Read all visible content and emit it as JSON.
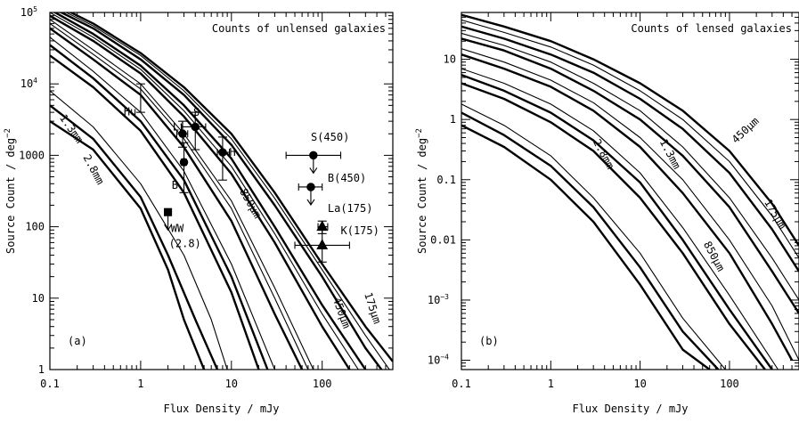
{
  "chart_data": [
    {
      "type": "line",
      "panel_label": "(a)",
      "title": "Counts of unlensed galaxies",
      "xlabel": "Flux Density / mJy",
      "ylabel": "Source Count / deg",
      "ylabel_exponent": "−2",
      "x_scale": "log",
      "y_scale": "log",
      "xlim": [
        0.1,
        600
      ],
      "ylim": [
        1,
        100000
      ],
      "x_ticks": [
        {
          "value": 0.1,
          "label": "0.1"
        },
        {
          "value": 1,
          "label": "1"
        },
        {
          "value": 10,
          "label": "10"
        },
        {
          "value": 100,
          "label": "100"
        }
      ],
      "y_ticks": [
        {
          "value": 1,
          "label": "1"
        },
        {
          "value": 10,
          "label": "10"
        },
        {
          "value": 100,
          "label": "100"
        },
        {
          "value": 1000,
          "label": "1000"
        },
        {
          "value": 10000,
          "label": "10",
          "exponent": "4"
        },
        {
          "value": 100000,
          "label": "10",
          "exponent": "5"
        }
      ],
      "curve_labels": [
        {
          "text": "2.8mm",
          "x": 0.28,
          "y": 600,
          "rotate": 62
        },
        {
          "text": "1.3mm",
          "x": 0.16,
          "y": 2200,
          "rotate": 55
        },
        {
          "text": "850μm",
          "x": 15,
          "y": 200,
          "rotate": 60
        },
        {
          "text": "450μm",
          "x": 150,
          "y": 6,
          "rotate": 70
        },
        {
          "text": "175μm",
          "x": 330,
          "y": 7,
          "rotate": 72
        }
      ],
      "series": [
        {
          "band": "2.8mm",
          "weight": "thick",
          "x": [
            0.1,
            0.3,
            1,
            2,
            3,
            5
          ],
          "y": [
            3000,
            1200,
            180,
            25,
            5,
            1
          ]
        },
        {
          "band": "2.8mm",
          "weight": "thick",
          "x": [
            0.1,
            0.3,
            1,
            2,
            4,
            7
          ],
          "y": [
            5000,
            1700,
            260,
            40,
            5,
            1
          ]
        },
        {
          "band": "2.8mm",
          "weight": "thin",
          "x": [
            0.1,
            0.3,
            1,
            3,
            6,
            9
          ],
          "y": [
            8000,
            2500,
            400,
            40,
            5,
            1
          ]
        },
        {
          "band": "1.3mm",
          "weight": "thick",
          "x": [
            0.1,
            0.3,
            1,
            3,
            10,
            20
          ],
          "y": [
            25000,
            9000,
            2200,
            300,
            12,
            1
          ]
        },
        {
          "band": "1.3mm",
          "weight": "thick",
          "x": [
            0.1,
            0.3,
            1,
            3,
            10,
            25
          ],
          "y": [
            35000,
            12000,
            3000,
            450,
            20,
            1
          ]
        },
        {
          "band": "1.3mm",
          "weight": "thin",
          "x": [
            0.1,
            0.3,
            1,
            3,
            10,
            30
          ],
          "y": [
            45000,
            15000,
            4000,
            600,
            30,
            1
          ]
        },
        {
          "band": "850μm",
          "weight": "thick",
          "x": [
            0.1,
            0.3,
            1,
            3,
            10,
            30,
            60
          ],
          "y": [
            60000,
            22000,
            7000,
            1300,
            120,
            6,
            1
          ]
        },
        {
          "band": "850μm",
          "weight": "thin",
          "x": [
            0.1,
            0.3,
            1,
            3,
            10,
            30,
            70
          ],
          "y": [
            70000,
            26000,
            8500,
            1700,
            180,
            10,
            1
          ]
        },
        {
          "band": "850μm",
          "weight": "thin",
          "x": [
            0.1,
            0.3,
            1,
            3,
            10,
            30,
            80
          ],
          "y": [
            80000,
            30000,
            10000,
            2000,
            230,
            14,
            1
          ]
        },
        {
          "band": "450μm",
          "weight": "thick",
          "x": [
            0.1,
            0.3,
            1,
            3,
            10,
            30,
            100,
            200
          ],
          "y": [
            90000,
            40000,
            14000,
            3500,
            550,
            60,
            4,
            1
          ]
        },
        {
          "band": "450μm",
          "weight": "thin",
          "x": [
            0.1,
            0.3,
            1,
            3,
            10,
            30,
            100,
            250
          ],
          "y": [
            100000,
            45000,
            16000,
            4200,
            700,
            80,
            6,
            1
          ]
        },
        {
          "band": "450μm",
          "weight": "thick",
          "x": [
            0.1,
            0.3,
            1,
            3,
            10,
            30,
            100,
            300
          ],
          "y": [
            110000,
            50000,
            18000,
            5000,
            900,
            100,
            8,
            1
          ]
        },
        {
          "band": "175μm",
          "weight": "thick",
          "x": [
            0.1,
            0.3,
            1,
            3,
            10,
            30,
            100,
            300,
            450
          ],
          "y": [
            120000,
            60000,
            22000,
            7000,
            1400,
            200,
            20,
            2,
            1
          ]
        },
        {
          "band": "175μm",
          "weight": "thin",
          "x": [
            0.1,
            0.3,
            1,
            3,
            10,
            30,
            100,
            300,
            550
          ],
          "y": [
            130000,
            65000,
            25000,
            8000,
            1700,
            250,
            25,
            3,
            1
          ]
        },
        {
          "band": "175μm",
          "weight": "thick",
          "x": [
            0.1,
            0.3,
            1,
            3,
            10,
            30,
            100,
            300,
            600
          ],
          "y": [
            140000,
            70000,
            27000,
            9000,
            2000,
            300,
            30,
            4,
            1.3
          ]
        }
      ],
      "data_points": [
        {
          "label": "Hu",
          "marker": "none",
          "x": 1.0,
          "y": 6300,
          "x_err": [
            1.0,
            1.0
          ],
          "y_err": [
            4000,
            10000
          ],
          "label_x": 0.65,
          "label_y": 4100
        },
        {
          "label": "Li",
          "marker": "circle",
          "x": 2.9,
          "y": 2000,
          "x_err": [
            2.5,
            3.3
          ],
          "y_err": [
            1300,
            3000
          ],
          "label_x": 2.25,
          "label_y": 2500
        },
        {
          "label": "S",
          "marker": "circle",
          "x": 4.0,
          "y": 2500,
          "x_err": [
            2.8,
            5.2
          ],
          "y_err": [
            1200,
            4000
          ],
          "label_x": 3.8,
          "label_y": 4000
        },
        {
          "label": "B",
          "marker": "circle",
          "x": 3.0,
          "y": 800,
          "x_err": [
            2.8,
            3.2
          ],
          "y_err": [
            300,
            1500
          ],
          "label_x": 2.2,
          "label_y": 380
        },
        {
          "label": "H",
          "marker": "circle",
          "x": 8.0,
          "y": 1100,
          "x_err": [
            7.0,
            9.5
          ],
          "y_err": [
            450,
            1800
          ],
          "label_x": 9.5,
          "label_y": 1100
        },
        {
          "label": "S(450)",
          "marker": "circle",
          "x": 80,
          "y": 1000,
          "x_err": [
            40,
            160
          ],
          "y_err": [
            1000,
            1000
          ],
          "upper_limit": true,
          "label_x": 75,
          "label_y": 1800
        },
        {
          "label": "B(450)",
          "marker": "circle",
          "x": 75,
          "y": 360,
          "x_err": [
            55,
            100
          ],
          "y_err": [
            360,
            360
          ],
          "upper_limit": true,
          "label_x": 115,
          "label_y": 480
        },
        {
          "label": "La(175)",
          "marker": "triangle",
          "x": 100,
          "y": 100,
          "x_err": [
            90,
            115
          ],
          "y_err": [
            80,
            120
          ],
          "label_x": 115,
          "label_y": 180
        },
        {
          "label": "K(175)",
          "marker": "triangle",
          "x": 100,
          "y": 55,
          "x_err": [
            50,
            200
          ],
          "y_err": [
            32,
            90
          ],
          "label_x": 160,
          "label_y": 88
        },
        {
          "label": "WW",
          "label2": "(2.8)",
          "marker": "square",
          "x": 2.0,
          "y": 160,
          "x_err": [
            2.0,
            2.0
          ],
          "y_err": [
            160,
            160
          ],
          "upper_limit": true,
          "label_x": 2.15,
          "label_y": 95,
          "label2_x": 2.05,
          "label2_y": 58
        }
      ]
    },
    {
      "type": "line",
      "panel_label": "(b)",
      "title": "Counts of lensed galaxies",
      "xlabel": "Flux Density / mJy",
      "ylabel": "Source Count / deg",
      "ylabel_exponent": "−2",
      "x_scale": "log",
      "y_scale": "log",
      "xlim": [
        0.1,
        600
      ],
      "ylim": [
        7e-05,
        60
      ],
      "x_ticks": [
        {
          "value": 0.1,
          "label": "0.1"
        },
        {
          "value": 1,
          "label": "1"
        },
        {
          "value": 10,
          "label": "10"
        },
        {
          "value": 100,
          "label": "100"
        }
      ],
      "y_ticks": [
        {
          "value": 0.0001,
          "label": "10",
          "exponent": "−4"
        },
        {
          "value": 0.001,
          "label": "10",
          "exponent": "−3"
        },
        {
          "value": 0.01,
          "label": "0.01"
        },
        {
          "value": 0.1,
          "label": "0.1"
        },
        {
          "value": 1,
          "label": "1"
        },
        {
          "value": 10,
          "label": "10"
        }
      ],
      "curve_labels": [
        {
          "text": "2.8mm",
          "x": 3.6,
          "y": 0.25,
          "rotate": 62
        },
        {
          "text": "1.3mm",
          "x": 20,
          "y": 0.25,
          "rotate": 62
        },
        {
          "text": "850μm",
          "x": 62,
          "y": 0.005,
          "rotate": 62
        },
        {
          "text": "450μm",
          "x": 160,
          "y": 0.6,
          "rotate": -43
        },
        {
          "text": "175μm",
          "x": 300,
          "y": 0.025,
          "rotate": 60
        }
      ],
      "series": [
        {
          "band": "2.8mm",
          "weight": "thick",
          "x": [
            0.1,
            0.3,
            1,
            3,
            10,
            30,
            60
          ],
          "y": [
            0.8,
            0.35,
            0.1,
            0.02,
            0.0018,
            0.00015,
            7e-05
          ]
        },
        {
          "band": "2.8mm",
          "weight": "thick",
          "x": [
            0.1,
            0.3,
            1,
            3,
            10,
            30,
            75
          ],
          "y": [
            1.3,
            0.55,
            0.17,
            0.035,
            0.0035,
            0.0003,
            7e-05
          ]
        },
        {
          "band": "2.8mm",
          "weight": "thin",
          "x": [
            0.1,
            0.3,
            1,
            3,
            10,
            30,
            90
          ],
          "y": [
            1.8,
            0.8,
            0.25,
            0.05,
            0.006,
            0.0005,
            7e-05
          ]
        },
        {
          "band": "1.3mm",
          "weight": "thick",
          "x": [
            0.1,
            0.3,
            1,
            3,
            10,
            30,
            100,
            250
          ],
          "y": [
            4,
            2.2,
            0.9,
            0.3,
            0.05,
            0.006,
            0.0004,
            7e-05
          ]
        },
        {
          "band": "1.3mm",
          "weight": "thick",
          "x": [
            0.1,
            0.3,
            1,
            3,
            10,
            30,
            100,
            300
          ],
          "y": [
            5.5,
            3,
            1.3,
            0.45,
            0.09,
            0.01,
            0.0007,
            7e-05
          ]
        },
        {
          "band": "1.3mm",
          "weight": "thin",
          "x": [
            0.1,
            0.3,
            1,
            3,
            10,
            30,
            100,
            350
          ],
          "y": [
            7,
            4,
            1.8,
            0.65,
            0.13,
            0.016,
            0.0012,
            7e-05
          ]
        },
        {
          "band": "850μm",
          "weight": "thick",
          "x": [
            0.1,
            0.3,
            1,
            3,
            10,
            30,
            100,
            300,
            500
          ],
          "y": [
            12,
            7,
            3.5,
            1.4,
            0.35,
            0.06,
            0.006,
            0.0004,
            0.0001
          ]
        },
        {
          "band": "850μm",
          "weight": "thin",
          "x": [
            0.1,
            0.3,
            1,
            3,
            10,
            30,
            100,
            300,
            600
          ],
          "y": [
            15,
            9,
            4.5,
            1.9,
            0.5,
            0.1,
            0.01,
            0.0008,
            0.0001
          ]
        },
        {
          "band": "450μm",
          "weight": "thick",
          "x": [
            0.1,
            0.3,
            1,
            3,
            10,
            30,
            100,
            300,
            600
          ],
          "y": [
            22,
            14,
            7,
            3,
            1,
            0.25,
            0.035,
            0.003,
            0.0006
          ]
        },
        {
          "band": "450μm",
          "weight": "thin",
          "x": [
            0.1,
            0.3,
            1,
            3,
            10,
            30,
            100,
            300,
            600
          ],
          "y": [
            27,
            17,
            9,
            4,
            1.4,
            0.35,
            0.05,
            0.005,
            0.001
          ]
        },
        {
          "band": "175μm",
          "weight": "thick",
          "x": [
            0.1,
            0.3,
            1,
            3,
            10,
            30,
            100,
            300,
            600
          ],
          "y": [
            35,
            22,
            12,
            6,
            2.2,
            0.7,
            0.13,
            0.015,
            0.003
          ]
        },
        {
          "band": "175μm",
          "weight": "thin",
          "x": [
            0.1,
            0.3,
            1,
            3,
            10,
            30,
            100,
            300,
            600
          ],
          "y": [
            45,
            28,
            16,
            8,
            3,
            1,
            0.2,
            0.025,
            0.005
          ]
        },
        {
          "band": "175μm",
          "weight": "thick",
          "x": [
            0.1,
            0.3,
            1,
            3,
            10,
            30,
            100,
            300,
            600
          ],
          "y": [
            55,
            35,
            20,
            10,
            4,
            1.4,
            0.3,
            0.04,
            0.008
          ]
        }
      ],
      "data_points": []
    }
  ]
}
